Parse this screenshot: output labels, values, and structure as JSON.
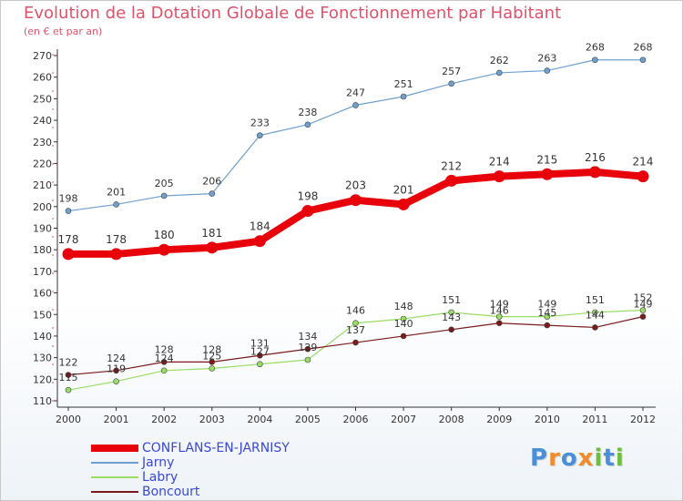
{
  "chart_data": {
    "type": "line",
    "title": "Evolution de la Dotation Globale de Fonctionnement par Habitant",
    "subtitle": "(en € et par an)",
    "xlabel": "",
    "ylabel": "",
    "categories": [
      "2000",
      "2001",
      "2002",
      "2003",
      "2004",
      "2005",
      "2006",
      "2007",
      "2008",
      "2009",
      "2010",
      "2011",
      "2012"
    ],
    "ylim": [
      110,
      270
    ],
    "yticks": [
      110,
      120,
      130,
      140,
      150,
      160,
      170,
      180,
      190,
      200,
      210,
      220,
      230,
      240,
      250,
      260,
      270
    ],
    "grid": false,
    "legend_position": "bottom-left",
    "series": [
      {
        "name": "CONFLANS-EN-JARNISY",
        "color": "#e8000b",
        "values": [
          178,
          178,
          180,
          181,
          184,
          198,
          203,
          201,
          212,
          214,
          215,
          216,
          214
        ]
      },
      {
        "name": "Jarny",
        "color": "#6fa0d0",
        "values": [
          198,
          201,
          205,
          206,
          233,
          238,
          247,
          251,
          257,
          262,
          263,
          268,
          268
        ]
      },
      {
        "name": "Labry",
        "color": "#99dd66",
        "values": [
          115,
          119,
          124,
          125,
          127,
          129,
          146,
          148,
          151,
          149,
          149,
          151,
          152
        ]
      },
      {
        "name": "Boncourt",
        "color": "#7a1a1a",
        "values": [
          122,
          124,
          128,
          128,
          131,
          134,
          137,
          140,
          143,
          146,
          145,
          144,
          149
        ]
      }
    ]
  },
  "logo": {
    "text": "Proxiti",
    "letters": [
      "P",
      "r",
      "o",
      "x",
      "i",
      "t",
      "i"
    ],
    "colors": [
      "#4a90d9",
      "#f28c28",
      "#4a90d9",
      "#f28c28",
      "#6cbf3a",
      "#4a90d9",
      "#6cbf3a"
    ]
  }
}
